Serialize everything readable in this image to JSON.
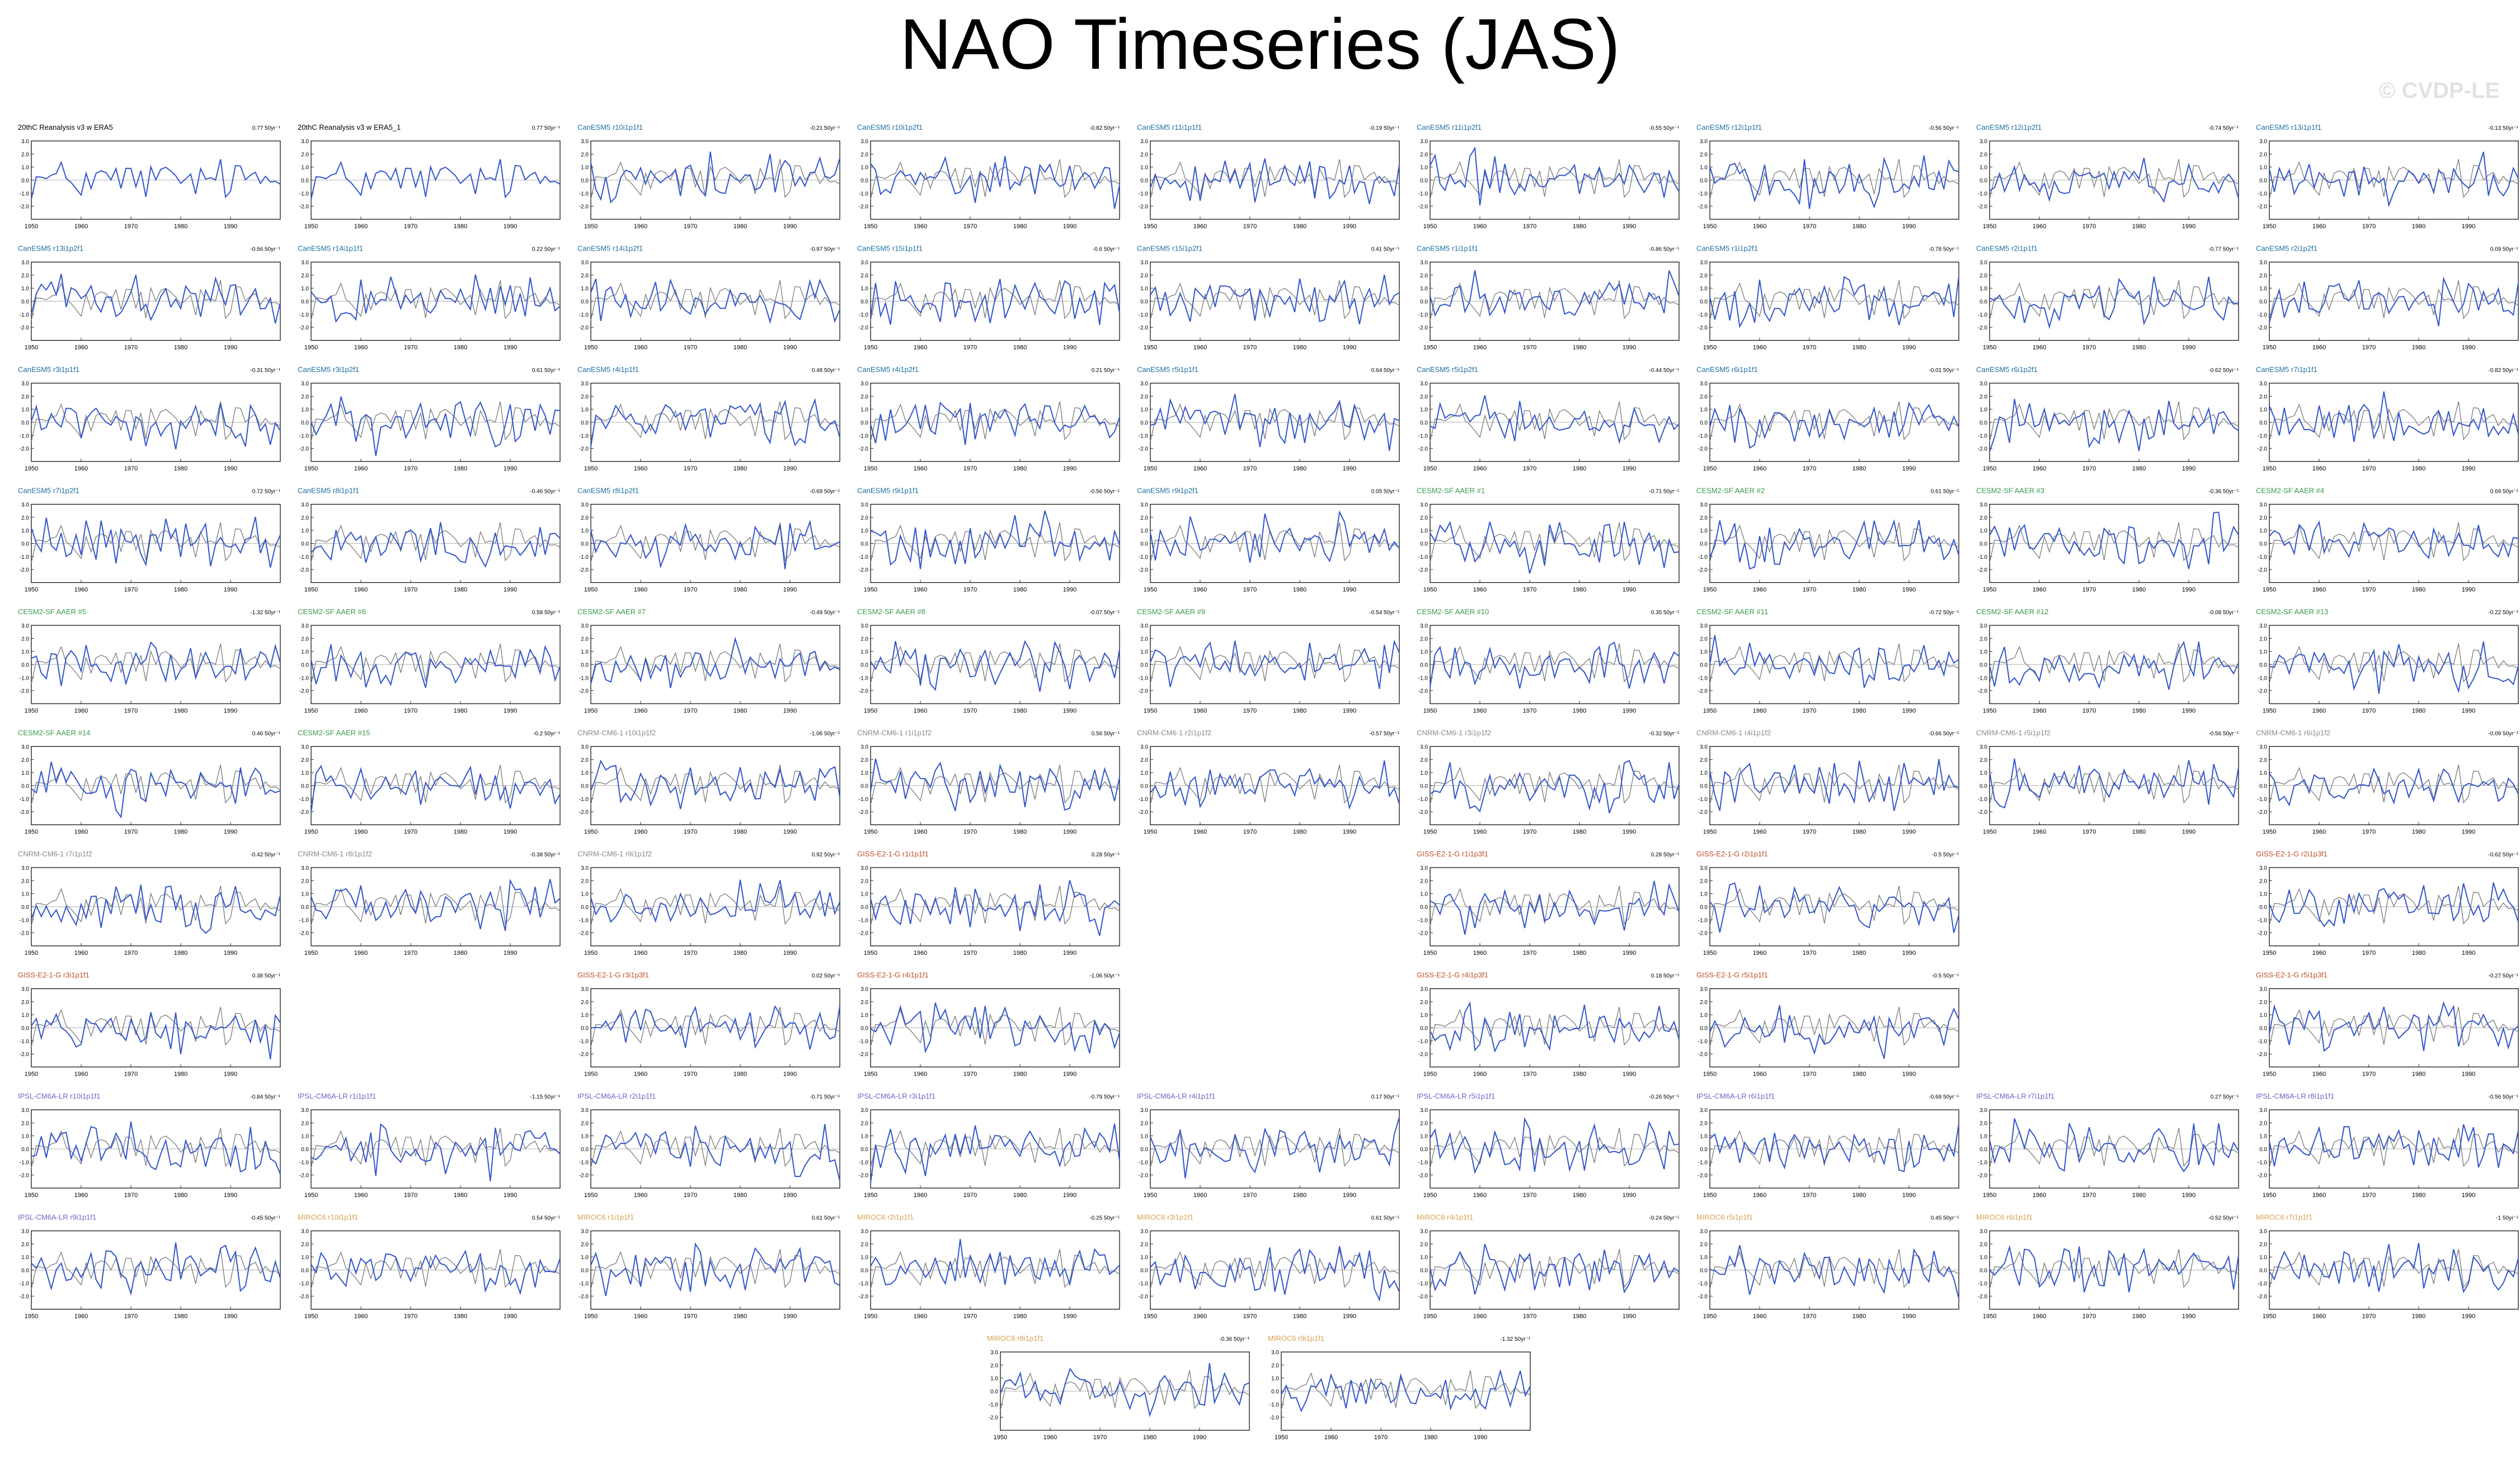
{
  "title": "NAO Timeseries (JAS)",
  "watermark": "© CVDP-LE",
  "colors": {
    "model_line": "#3355cc",
    "obs_line": "#7a7a7a",
    "zero_line": "#999999"
  },
  "chart_data": {
    "type": "line",
    "xlim": [
      1950,
      2000
    ],
    "x_ticks": [
      1950,
      1960,
      1970,
      1980,
      1990
    ],
    "y_tick_labels": [
      "3.0",
      "2.0",
      "1.0",
      "0.0",
      "-1.0",
      "-2.0"
    ],
    "panel_group_colors": {
      "obs": "#000000",
      "CanESM5": "#1f6fa3",
      "CESM2-SF AAER": "#3a9a4e",
      "CNRM-CM6-1": "#8a8a8a",
      "GISS-E2-1-G": "#c0502a",
      "IPSL-CM6A-LR": "#7a5cc8",
      "MIROC6": "#d9a050"
    },
    "rows": [
      [
        {
          "name": "20thC Reanalysis v3 w ERA5",
          "trend": "0.77 50yr⁻¹",
          "group": "obs"
        },
        {
          "name": "20thC Reanalysis v3 w ERA5_1",
          "trend": "0.77 50yr⁻¹",
          "group": "obs"
        },
        {
          "name": "CanESM5 r10i1p1f1",
          "trend": "-0.21 50yr⁻¹",
          "group": "CanESM5"
        },
        {
          "name": "CanESM5 r10i1p2f1",
          "trend": "-0.82 50yr⁻¹",
          "group": "CanESM5"
        },
        {
          "name": "CanESM5 r11i1p1f1",
          "trend": "-0.19 50yr⁻¹",
          "group": "CanESM5"
        },
        {
          "name": "CanESM5 r11i1p2f1",
          "trend": "-0.55 50yr⁻¹",
          "group": "CanESM5"
        },
        {
          "name": "CanESM5 r12i1p1f1",
          "trend": "-0.56 50yr⁻¹",
          "group": "CanESM5"
        },
        {
          "name": "CanESM5 r12i1p2f1",
          "trend": "-0.74 50yr⁻¹",
          "group": "CanESM5"
        },
        {
          "name": "CanESM5 r13i1p1f1",
          "trend": "-0.13 50yr⁻¹",
          "group": "CanESM5"
        }
      ],
      [
        {
          "name": "CanESM5 r13i1p2f1",
          "trend": "-0.56 50yr⁻¹",
          "group": "CanESM5"
        },
        {
          "name": "CanESM5 r14i1p1f1",
          "trend": "0.22 50yr⁻¹",
          "group": "CanESM5"
        },
        {
          "name": "CanESM5 r14i1p2f1",
          "trend": "-0.97 50yr⁻¹",
          "group": "CanESM5"
        },
        {
          "name": "CanESM5 r15i1p1f1",
          "trend": "-0.6 50yr⁻¹",
          "group": "CanESM5"
        },
        {
          "name": "CanESM5 r15i1p2f1",
          "trend": "0.41 50yr⁻¹",
          "group": "CanESM5"
        },
        {
          "name": "CanESM5 r1i1p1f1",
          "trend": "-0.86 50yr⁻¹",
          "group": "CanESM5"
        },
        {
          "name": "CanESM5 r1i1p2f1",
          "trend": "-0.78 50yr⁻¹",
          "group": "CanESM5"
        },
        {
          "name": "CanESM5 r2i1p1f1",
          "trend": "-0.77 50yr⁻¹",
          "group": "CanESM5"
        },
        {
          "name": "CanESM5 r2i1p2f1",
          "trend": "0.09 50yr⁻¹",
          "group": "CanESM5"
        }
      ],
      [
        {
          "name": "CanESM5 r3i1p1f1",
          "trend": "-0.31 50yr⁻¹",
          "group": "CanESM5"
        },
        {
          "name": "CanESM5 r3i1p2f1",
          "trend": "0.61 50yr⁻¹",
          "group": "CanESM5"
        },
        {
          "name": "CanESM5 r4i1p1f1",
          "trend": "0.48 50yr⁻¹",
          "group": "CanESM5"
        },
        {
          "name": "CanESM5 r4i1p2f1",
          "trend": "0.21 50yr⁻¹",
          "group": "CanESM5"
        },
        {
          "name": "CanESM5 r5i1p1f1",
          "trend": "0.64 50yr⁻¹",
          "group": "CanESM5"
        },
        {
          "name": "CanESM5 r5i1p2f1",
          "trend": "-0.44 50yr⁻¹",
          "group": "CanESM5"
        },
        {
          "name": "CanESM5 r6i1p1f1",
          "trend": "-0.01 50yr⁻¹",
          "group": "CanESM5"
        },
        {
          "name": "CanESM5 r6i1p2f1",
          "trend": "-0.62 50yr⁻¹",
          "group": "CanESM5"
        },
        {
          "name": "CanESM5 r7i1p1f1",
          "trend": "-0.82 50yr⁻¹",
          "group": "CanESM5"
        }
      ],
      [
        {
          "name": "CanESM5 r7i1p2f1",
          "trend": "0.72 50yr⁻¹",
          "group": "CanESM5"
        },
        {
          "name": "CanESM5 r8i1p1f1",
          "trend": "-0.46 50yr⁻¹",
          "group": "CanESM5"
        },
        {
          "name": "CanESM5 r8i1p2f1",
          "trend": "-0.69 50yr⁻¹",
          "group": "CanESM5"
        },
        {
          "name": "CanESM5 r9i1p1f1",
          "trend": "-0.56 50yr⁻¹",
          "group": "CanESM5"
        },
        {
          "name": "CanESM5 r9i1p2f1",
          "trend": "0.05 50yr⁻¹",
          "group": "CanESM5"
        },
        {
          "name": "CESM2-SF AAER #1",
          "trend": "-0.71 50yr⁻¹",
          "group": "CESM2-SF AAER"
        },
        {
          "name": "CESM2-SF AAER #2",
          "trend": "0.61 50yr⁻¹",
          "group": "CESM2-SF AAER"
        },
        {
          "name": "CESM2-SF AAER #3",
          "trend": "-0.36 50yr⁻¹",
          "group": "CESM2-SF AAER"
        },
        {
          "name": "CESM2-SF AAER #4",
          "trend": "0.69 50yr⁻¹",
          "group": "CESM2-SF AAER"
        }
      ],
      [
        {
          "name": "CESM2-SF AAER #5",
          "trend": "-1.32 50yr⁻¹",
          "group": "CESM2-SF AAER"
        },
        {
          "name": "CESM2-SF AAER #6",
          "trend": "0.58 50yr⁻¹",
          "group": "CESM2-SF AAER"
        },
        {
          "name": "CESM2-SF AAER #7",
          "trend": "-0.49 50yr⁻¹",
          "group": "CESM2-SF AAER"
        },
        {
          "name": "CESM2-SF AAER #8",
          "trend": "-0.07 50yr⁻¹",
          "group": "CESM2-SF AAER"
        },
        {
          "name": "CESM2-SF AAER #9",
          "trend": "-0.54 50yr⁻¹",
          "group": "CESM2-SF AAER"
        },
        {
          "name": "CESM2-SF AAER #10",
          "trend": "0.35 50yr⁻¹",
          "group": "CESM2-SF AAER"
        },
        {
          "name": "CESM2-SF AAER #11",
          "trend": "-0.72 50yr⁻¹",
          "group": "CESM2-SF AAER"
        },
        {
          "name": "CESM2-SF AAER #12",
          "trend": "-0.08 50yr⁻¹",
          "group": "CESM2-SF AAER"
        },
        {
          "name": "CESM2-SF AAER #13",
          "trend": "-0.22 50yr⁻¹",
          "group": "CESM2-SF AAER"
        }
      ],
      [
        {
          "name": "CESM2-SF AAER #14",
          "trend": "0.46 50yr⁻¹",
          "group": "CESM2-SF AAER"
        },
        {
          "name": "CESM2-SF AAER #15",
          "trend": "-0.2 50yr⁻¹",
          "group": "CESM2-SF AAER"
        },
        {
          "name": "CNRM-CM6-1 r10i1p1f2",
          "trend": "-1.06 50yr⁻¹",
          "group": "CNRM-CM6-1"
        },
        {
          "name": "CNRM-CM6-1 r1i1p1f2",
          "trend": "0.56 50yr⁻¹",
          "group": "CNRM-CM6-1"
        },
        {
          "name": "CNRM-CM6-1 r2i1p1f2",
          "trend": "-0.57 50yr⁻¹",
          "group": "CNRM-CM6-1"
        },
        {
          "name": "CNRM-CM6-1 r3i1p1f2",
          "trend": "-0.32 50yr⁻¹",
          "group": "CNRM-CM6-1"
        },
        {
          "name": "CNRM-CM6-1 r4i1p1f2",
          "trend": "-0.66 50yr⁻¹",
          "group": "CNRM-CM6-1"
        },
        {
          "name": "CNRM-CM6-1 r5i1p1f2",
          "trend": "-0.56 50yr⁻¹",
          "group": "CNRM-CM6-1"
        },
        {
          "name": "CNRM-CM6-1 r6i1p1f2",
          "trend": "-0.09 50yr⁻¹",
          "group": "CNRM-CM6-1"
        }
      ],
      [
        {
          "name": "CNRM-CM6-1 r7i1p1f2",
          "trend": "-0.42 50yr⁻¹",
          "group": "CNRM-CM6-1"
        },
        {
          "name": "CNRM-CM6-1 r8i1p1f2",
          "trend": "-0.38 50yr⁻¹",
          "group": "CNRM-CM6-1"
        },
        {
          "name": "CNRM-CM6-1 r9i1p1f2",
          "trend": "0.92 50yr⁻¹",
          "group": "CNRM-CM6-1"
        },
        {
          "name": "GISS-E2-1-G r1i1p1f1",
          "trend": "0.28 50yr⁻¹",
          "group": "GISS-E2-1-G"
        },
        null,
        {
          "name": "GISS-E2-1-G r1i1p3f1",
          "trend": "0.28 50yr⁻¹",
          "group": "GISS-E2-1-G"
        },
        {
          "name": "GISS-E2-1-G r2i1p1f1",
          "trend": "-0.5 50yr⁻¹",
          "group": "GISS-E2-1-G"
        },
        null,
        {
          "name": "GISS-E2-1-G r2i1p3f1",
          "trend": "-0.62 50yr⁻¹",
          "group": "GISS-E2-1-G"
        }
      ],
      [
        {
          "name": "GISS-E2-1-G r3i1p1f1",
          "trend": "0.38 50yr⁻¹",
          "group": "GISS-E2-1-G"
        },
        null,
        {
          "name": "GISS-E2-1-G r3i1p3f1",
          "trend": "0.02 50yr⁻¹",
          "group": "GISS-E2-1-G"
        },
        {
          "name": "GISS-E2-1-G r4i1p1f1",
          "trend": "-1.06 50yr⁻¹",
          "group": "GISS-E2-1-G"
        },
        null,
        {
          "name": "GISS-E2-1-G r4i1p3f1",
          "trend": "0.18 50yr⁻¹",
          "group": "GISS-E2-1-G"
        },
        {
          "name": "GISS-E2-1-G r5i1p1f1",
          "trend": "-0.5 50yr⁻¹",
          "group": "GISS-E2-1-G"
        },
        null,
        {
          "name": "GISS-E2-1-G r5i1p3f1",
          "trend": "-0.27 50yr⁻¹",
          "group": "GISS-E2-1-G"
        }
      ],
      [
        {
          "name": "IPSL-CM6A-LR r10i1p1f1",
          "trend": "-0.84 50yr⁻¹",
          "group": "IPSL-CM6A-LR"
        },
        {
          "name": "IPSL-CM6A-LR r1i1p1f1",
          "trend": "-1.15 50yr⁻¹",
          "group": "IPSL-CM6A-LR"
        },
        {
          "name": "IPSL-CM6A-LR r2i1p1f1",
          "trend": "-0.71 50yr⁻¹",
          "group": "IPSL-CM6A-LR"
        },
        {
          "name": "IPSL-CM6A-LR r3i1p1f1",
          "trend": "-0.79 50yr⁻¹",
          "group": "IPSL-CM6A-LR"
        },
        {
          "name": "IPSL-CM6A-LR r4i1p1f1",
          "trend": "0.17 50yr⁻¹",
          "group": "IPSL-CM6A-LR"
        },
        {
          "name": "IPSL-CM6A-LR r5i1p1f1",
          "trend": "-0.26 50yr⁻¹",
          "group": "IPSL-CM6A-LR"
        },
        {
          "name": "IPSL-CM6A-LR r6i1p1f1",
          "trend": "-0.69 50yr⁻¹",
          "group": "IPSL-CM6A-LR"
        },
        {
          "name": "IPSL-CM6A-LR r7i1p1f1",
          "trend": "0.27 50yr⁻¹",
          "group": "IPSL-CM6A-LR"
        },
        {
          "name": "IPSL-CM6A-LR r8i1p1f1",
          "trend": "-0.56 50yr⁻¹",
          "group": "IPSL-CM6A-LR"
        }
      ],
      [
        {
          "name": "IPSL-CM6A-LR r9i1p1f1",
          "trend": "-0.45 50yr⁻¹",
          "group": "IPSL-CM6A-LR"
        },
        {
          "name": "MIROC6 r10i1p1f1",
          "trend": "0.54 50yr⁻¹",
          "group": "MIROC6"
        },
        {
          "name": "MIROC6 r1i1p1f1",
          "trend": "0.61 50yr⁻¹",
          "group": "MIROC6"
        },
        {
          "name": "MIROC6 r2i1p1f1",
          "trend": "-0.25 50yr⁻¹",
          "group": "MIROC6"
        },
        {
          "name": "MIROC6 r3i1p1f1",
          "trend": "0.61 50yr⁻¹",
          "group": "MIROC6"
        },
        {
          "name": "MIROC6 r4i1p1f1",
          "trend": "-0.24 50yr⁻¹",
          "group": "MIROC6"
        },
        {
          "name": "MIROC6 r5i1p1f1",
          "trend": "0.45 50yr⁻¹",
          "group": "MIROC6"
        },
        {
          "name": "MIROC6 r6i1p1f1",
          "trend": "-0.52 50yr⁻¹",
          "group": "MIROC6"
        },
        {
          "name": "MIROC6 r7i1p1f1",
          "trend": "-1 50yr⁻¹",
          "group": "MIROC6"
        }
      ]
    ],
    "bottom_row": [
      {
        "name": "MIROC6 r8i1p1f1",
        "trend": "-0.36 50yr⁻¹",
        "group": "MIROC6"
      },
      {
        "name": "MIROC6 r9i1p1f1",
        "trend": "-1.32 50yr⁻¹",
        "group": "MIROC6"
      }
    ]
  }
}
